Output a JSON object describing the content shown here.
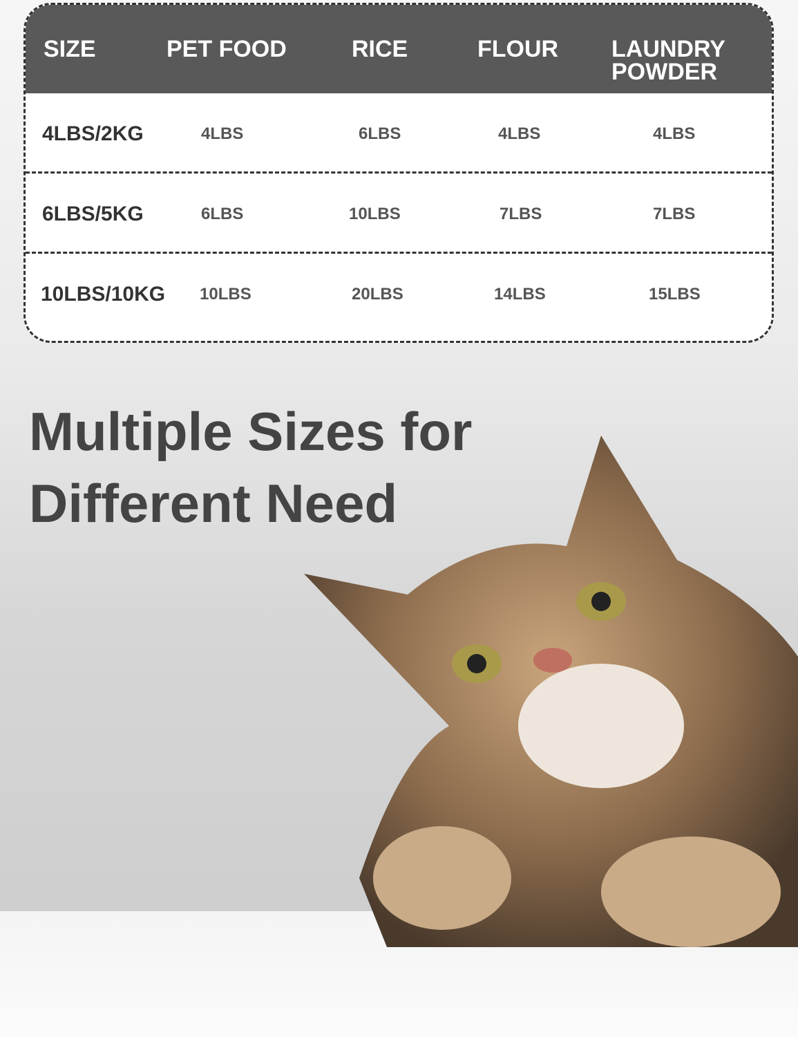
{
  "table": {
    "headers": [
      "SIZE",
      "PET FOOD",
      "RICE",
      "FLOUR",
      "LAUNDRY POWDER"
    ],
    "rows": [
      [
        "4LBS/2KG",
        "4LBS",
        "6LBS",
        "4LBS",
        "4LBS"
      ],
      [
        "6LBS/5KG",
        "6LBS",
        "10LBS",
        "7LBS",
        "7LBS"
      ],
      [
        "10LBS/10KG",
        "10LBS",
        "20LBS",
        "14LBS",
        "15LBS"
      ]
    ]
  },
  "headline": {
    "line1": "Multiple Sizes for",
    "line2": "Different Need"
  },
  "colors": {
    "header_bg": "#595959",
    "headline": "#444444"
  },
  "image": "tabby-cat-photo"
}
